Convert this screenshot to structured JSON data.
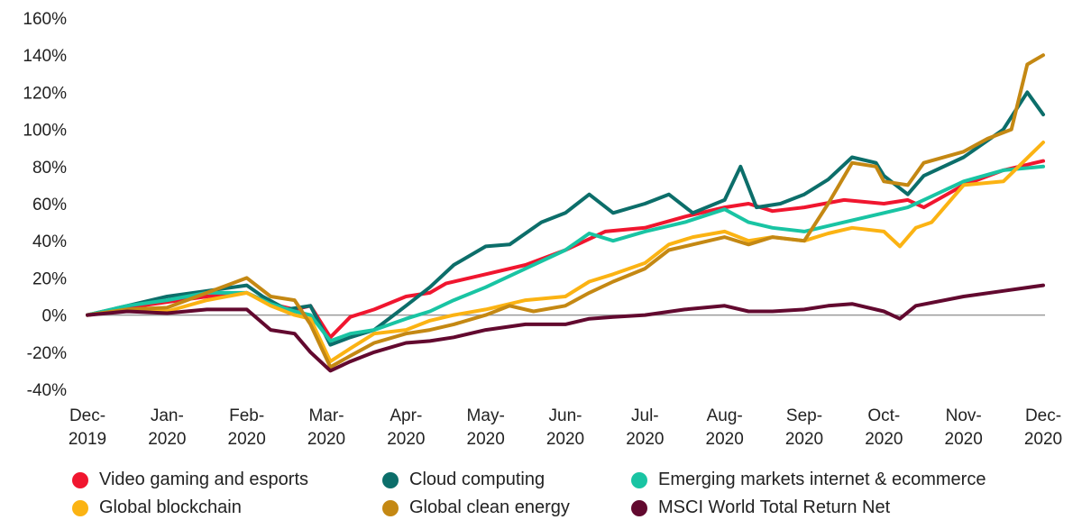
{
  "chart_data": {
    "type": "line",
    "title": "",
    "xlabel": "",
    "ylabel": "",
    "ylim": [
      -40,
      160
    ],
    "y_ticks": [
      "160%",
      "140%",
      "120%",
      "100%",
      "80%",
      "60%",
      "40%",
      "20%",
      "0%",
      "-20%",
      "-40%"
    ],
    "x_ticks": [
      [
        "Dec-",
        "2019"
      ],
      [
        "Jan-",
        "2020"
      ],
      [
        "Feb-",
        "2020"
      ],
      [
        "Mar-",
        "2020"
      ],
      [
        "Apr-",
        "2020"
      ],
      [
        "May-",
        "2020"
      ],
      [
        "Jun-",
        "2020"
      ],
      [
        "Jul-",
        "2020"
      ],
      [
        "Aug-",
        "2020"
      ],
      [
        "Sep-",
        "2020"
      ],
      [
        "Oct-",
        "2020"
      ],
      [
        "Nov-",
        "2020"
      ],
      [
        "Dec-",
        "2020"
      ]
    ],
    "x_unit": "month index (0 = Dec-2019, 12 = Dec-2020)",
    "grid": false,
    "legend_position": "bottom",
    "series": [
      {
        "name": "Video gaming and esports",
        "color": "#f0162f",
        "points": [
          [
            0,
            0
          ],
          [
            0.5,
            4
          ],
          [
            1,
            7
          ],
          [
            1.5,
            10
          ],
          [
            2,
            12
          ],
          [
            2.3,
            6
          ],
          [
            2.6,
            3
          ],
          [
            2.8,
            5
          ],
          [
            3.05,
            -12
          ],
          [
            3.3,
            -1
          ],
          [
            3.6,
            3
          ],
          [
            4,
            10
          ],
          [
            4.3,
            12
          ],
          [
            4.5,
            17
          ],
          [
            5,
            22
          ],
          [
            5.5,
            27
          ],
          [
            6,
            35
          ],
          [
            6.5,
            45
          ],
          [
            7,
            47
          ],
          [
            7.5,
            53
          ],
          [
            8,
            58
          ],
          [
            8.3,
            60
          ],
          [
            8.6,
            56
          ],
          [
            9,
            58
          ],
          [
            9.5,
            62
          ],
          [
            10,
            60
          ],
          [
            10.3,
            62
          ],
          [
            10.5,
            58
          ],
          [
            11,
            70
          ],
          [
            11.5,
            78
          ],
          [
            12,
            83
          ]
        ]
      },
      {
        "name": "Cloud computing",
        "color": "#0c6e6a",
        "points": [
          [
            0,
            0
          ],
          [
            0.5,
            5
          ],
          [
            1,
            10
          ],
          [
            1.5,
            13
          ],
          [
            2,
            16
          ],
          [
            2.2,
            10
          ],
          [
            2.5,
            3
          ],
          [
            2.8,
            5
          ],
          [
            3.05,
            -16
          ],
          [
            3.3,
            -12
          ],
          [
            3.6,
            -8
          ],
          [
            4,
            5
          ],
          [
            4.3,
            15
          ],
          [
            4.6,
            27
          ],
          [
            5,
            37
          ],
          [
            5.3,
            38
          ],
          [
            5.7,
            50
          ],
          [
            6,
            55
          ],
          [
            6.3,
            65
          ],
          [
            6.6,
            55
          ],
          [
            7,
            60
          ],
          [
            7.3,
            65
          ],
          [
            7.6,
            55
          ],
          [
            8,
            62
          ],
          [
            8.2,
            80
          ],
          [
            8.4,
            58
          ],
          [
            8.7,
            60
          ],
          [
            9,
            65
          ],
          [
            9.3,
            73
          ],
          [
            9.6,
            85
          ],
          [
            9.9,
            82
          ],
          [
            10,
            75
          ],
          [
            10.3,
            65
          ],
          [
            10.5,
            75
          ],
          [
            11,
            85
          ],
          [
            11.5,
            100
          ],
          [
            11.8,
            120
          ],
          [
            12,
            108
          ]
        ]
      },
      {
        "name": "Emerging markets internet & ecommerce",
        "color": "#19c4a3",
        "points": [
          [
            0,
            0
          ],
          [
            0.5,
            5
          ],
          [
            1,
            8
          ],
          [
            1.5,
            12
          ],
          [
            2,
            12
          ],
          [
            2.3,
            6
          ],
          [
            2.6,
            2
          ],
          [
            2.8,
            0
          ],
          [
            3.05,
            -14
          ],
          [
            3.3,
            -10
          ],
          [
            3.6,
            -8
          ],
          [
            4,
            -2
          ],
          [
            4.3,
            2
          ],
          [
            4.6,
            8
          ],
          [
            5,
            15
          ],
          [
            5.5,
            25
          ],
          [
            6,
            35
          ],
          [
            6.3,
            44
          ],
          [
            6.6,
            40
          ],
          [
            7,
            45
          ],
          [
            7.5,
            50
          ],
          [
            8,
            57
          ],
          [
            8.3,
            50
          ],
          [
            8.6,
            47
          ],
          [
            9,
            45
          ],
          [
            9.5,
            50
          ],
          [
            10,
            55
          ],
          [
            10.3,
            58
          ],
          [
            10.5,
            62
          ],
          [
            11,
            72
          ],
          [
            11.5,
            78
          ],
          [
            12,
            80
          ]
        ]
      },
      {
        "name": "Global blockchain",
        "color": "#fbb313",
        "points": [
          [
            0,
            0
          ],
          [
            0.5,
            3
          ],
          [
            1,
            2
          ],
          [
            1.5,
            8
          ],
          [
            2,
            12
          ],
          [
            2.3,
            5
          ],
          [
            2.6,
            0
          ],
          [
            2.8,
            -2
          ],
          [
            3.05,
            -25
          ],
          [
            3.3,
            -18
          ],
          [
            3.6,
            -10
          ],
          [
            4,
            -8
          ],
          [
            4.3,
            -3
          ],
          [
            4.6,
            0
          ],
          [
            5,
            3
          ],
          [
            5.5,
            8
          ],
          [
            6,
            10
          ],
          [
            6.3,
            18
          ],
          [
            6.6,
            22
          ],
          [
            7,
            28
          ],
          [
            7.3,
            38
          ],
          [
            7.6,
            42
          ],
          [
            8,
            45
          ],
          [
            8.3,
            40
          ],
          [
            8.6,
            42
          ],
          [
            9,
            40
          ],
          [
            9.3,
            44
          ],
          [
            9.6,
            47
          ],
          [
            10,
            45
          ],
          [
            10.2,
            37
          ],
          [
            10.4,
            47
          ],
          [
            10.6,
            50
          ],
          [
            11,
            70
          ],
          [
            11.5,
            72
          ],
          [
            12,
            93
          ]
        ]
      },
      {
        "name": "Global clean energy",
        "color": "#c48813",
        "points": [
          [
            0,
            0
          ],
          [
            0.5,
            3
          ],
          [
            1,
            4
          ],
          [
            1.5,
            12
          ],
          [
            2,
            20
          ],
          [
            2.3,
            10
          ],
          [
            2.6,
            8
          ],
          [
            2.8,
            -5
          ],
          [
            3.05,
            -28
          ],
          [
            3.3,
            -22
          ],
          [
            3.6,
            -15
          ],
          [
            4,
            -10
          ],
          [
            4.3,
            -8
          ],
          [
            4.6,
            -5
          ],
          [
            5,
            0
          ],
          [
            5.3,
            5
          ],
          [
            5.6,
            2
          ],
          [
            6,
            5
          ],
          [
            6.3,
            12
          ],
          [
            6.6,
            18
          ],
          [
            7,
            25
          ],
          [
            7.3,
            35
          ],
          [
            7.6,
            38
          ],
          [
            8,
            42
          ],
          [
            8.3,
            38
          ],
          [
            8.6,
            42
          ],
          [
            9,
            40
          ],
          [
            9.3,
            60
          ],
          [
            9.6,
            82
          ],
          [
            9.9,
            80
          ],
          [
            10,
            72
          ],
          [
            10.3,
            70
          ],
          [
            10.5,
            82
          ],
          [
            11,
            88
          ],
          [
            11.3,
            95
          ],
          [
            11.6,
            100
          ],
          [
            11.8,
            135
          ],
          [
            12,
            140
          ]
        ]
      },
      {
        "name": "MSCI World Total Return Net",
        "color": "#62092f",
        "points": [
          [
            0,
            0
          ],
          [
            0.5,
            2
          ],
          [
            1,
            1
          ],
          [
            1.5,
            3
          ],
          [
            2,
            3
          ],
          [
            2.3,
            -8
          ],
          [
            2.6,
            -10
          ],
          [
            2.8,
            -20
          ],
          [
            3.05,
            -30
          ],
          [
            3.3,
            -25
          ],
          [
            3.6,
            -20
          ],
          [
            4,
            -15
          ],
          [
            4.3,
            -14
          ],
          [
            4.6,
            -12
          ],
          [
            5,
            -8
          ],
          [
            5.5,
            -5
          ],
          [
            6,
            -5
          ],
          [
            6.3,
            -2
          ],
          [
            6.6,
            -1
          ],
          [
            7,
            0
          ],
          [
            7.5,
            3
          ],
          [
            8,
            5
          ],
          [
            8.3,
            2
          ],
          [
            8.6,
            2
          ],
          [
            9,
            3
          ],
          [
            9.3,
            5
          ],
          [
            9.6,
            6
          ],
          [
            10,
            2
          ],
          [
            10.2,
            -2
          ],
          [
            10.4,
            5
          ],
          [
            11,
            10
          ],
          [
            11.5,
            13
          ],
          [
            12,
            16
          ]
        ]
      }
    ]
  }
}
